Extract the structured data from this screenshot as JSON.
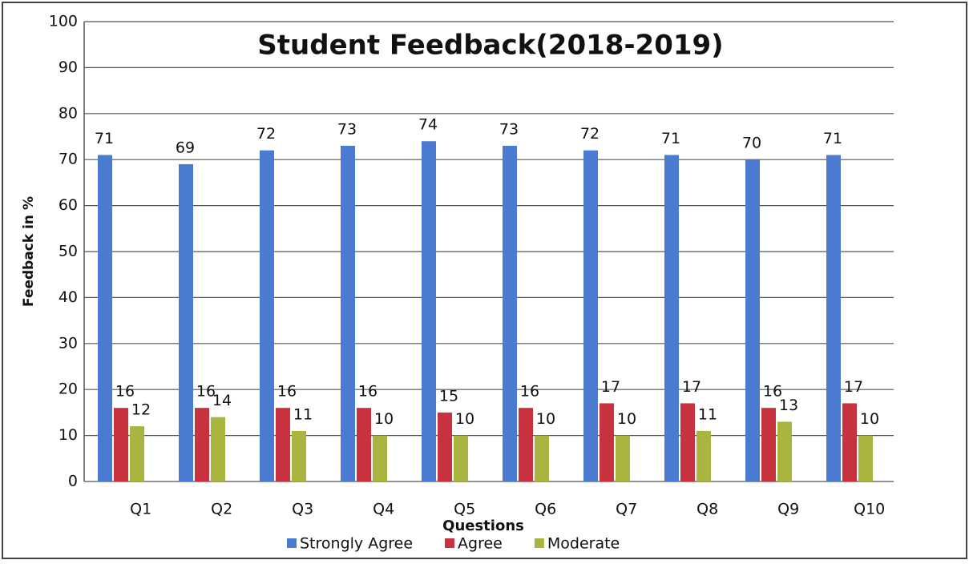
{
  "chart_data": {
    "type": "bar",
    "title": "Student Feedback(2018-2019)",
    "x_label": "Questions",
    "y_label": "Feedback in %",
    "categories": [
      "Q1",
      "Q2",
      "Q3",
      "Q4",
      "Q5",
      "Q6",
      "Q7",
      "Q8",
      "Q9",
      "Q10"
    ],
    "series": [
      {
        "name": "Strongly Agree",
        "color": "#4a7bd0",
        "values": [
          71,
          69,
          72,
          73,
          74,
          73,
          72,
          71,
          70,
          71
        ]
      },
      {
        "name": "Agree",
        "color": "#c8323e",
        "values": [
          16,
          16,
          16,
          16,
          15,
          16,
          17,
          17,
          16,
          17
        ]
      },
      {
        "name": "Moderate",
        "color": "#a9b53f",
        "values": [
          12,
          14,
          11,
          10,
          10,
          10,
          10,
          11,
          13,
          10
        ]
      }
    ],
    "ylim": [
      0,
      100
    ],
    "yticks": [
      0,
      10,
      20,
      30,
      40,
      50,
      60,
      70,
      80,
      90,
      100
    ],
    "grid": true,
    "legend": "bottom"
  }
}
